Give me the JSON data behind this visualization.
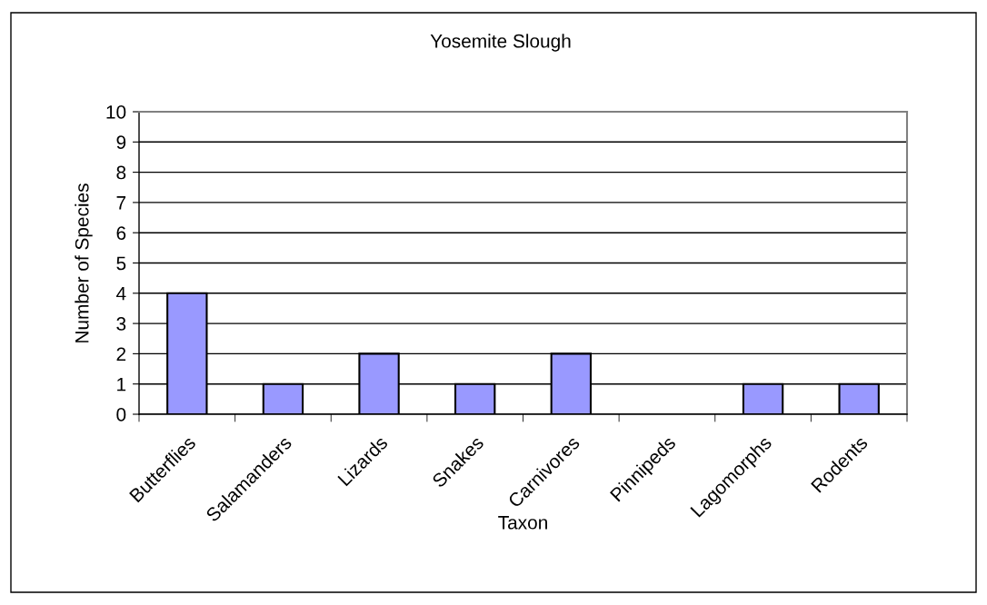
{
  "chart_data": {
    "type": "bar",
    "title": "Yosemite Slough",
    "xlabel": "Taxon",
    "ylabel": "Number of Species",
    "categories": [
      "Butterflies",
      "Salamanders",
      "Lizards",
      "Snakes",
      "Carnivores",
      "Pinnipeds",
      "Lagomorphs",
      "Rodents"
    ],
    "values": [
      4,
      1,
      2,
      1,
      2,
      0,
      1,
      1
    ],
    "color": "#9999ff",
    "ylim": [
      0,
      10
    ],
    "yticks": [
      0,
      1,
      2,
      3,
      4,
      5,
      6,
      7,
      8,
      9,
      10
    ],
    "grid": "y"
  }
}
